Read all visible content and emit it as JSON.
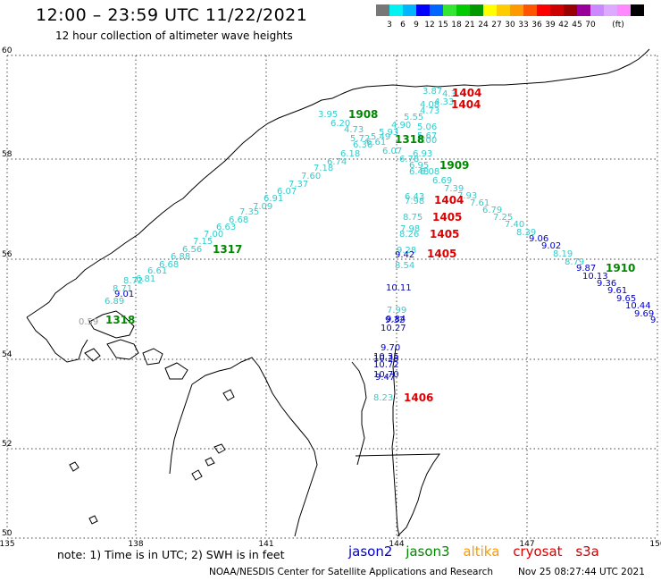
{
  "header": {
    "title": "12:00 – 23:59 UTC 11/22/2021",
    "subtitle": "12 hour collection of altimeter wave heights"
  },
  "scale": {
    "unit": "(ft)",
    "colors": [
      "#777777",
      "#00f2f2",
      "#00b4ff",
      "#0000ff",
      "#0066ff",
      "#33e633",
      "#00cc00",
      "#009900",
      "#ffff00",
      "#ffcc00",
      "#ff9900",
      "#ff5500",
      "#ff0000",
      "#cc0000",
      "#990000",
      "#990099",
      "#cc88ff",
      "#ddaaff",
      "#ff88ff",
      "#000000"
    ],
    "labels": [
      "3",
      "6",
      "9",
      "12",
      "15",
      "18",
      "21",
      "24",
      "27",
      "30",
      "33",
      "36",
      "39",
      "42",
      "45",
      "70"
    ]
  },
  "map": {
    "lat_ticks": [
      "60",
      "58",
      "56",
      "54",
      "52",
      "50"
    ],
    "lon_ticks": [
      "135",
      "138",
      "141",
      "144",
      "147",
      "150"
    ],
    "track_labels": [
      {
        "text": "1404",
        "color": "#dd0000"
      },
      {
        "text": "1404",
        "color": "#dd0000"
      },
      {
        "text": "1908",
        "color": "#008800"
      },
      {
        "text": "1318",
        "color": "#008800"
      },
      {
        "text": "1909",
        "color": "#008800"
      },
      {
        "text": "1404",
        "color": "#dd0000"
      },
      {
        "text": "1405",
        "color": "#dd0000"
      },
      {
        "text": "1405",
        "color": "#dd0000"
      },
      {
        "text": "1405",
        "color": "#dd0000"
      },
      {
        "text": "1317",
        "color": "#008800"
      },
      {
        "text": "1910",
        "color": "#008800"
      },
      {
        "text": "1318",
        "color": "#008800"
      },
      {
        "text": "1406",
        "color": "#dd0000"
      }
    ],
    "observations": [
      {
        "text": "3.87",
        "color": "#33cccc"
      },
      {
        "text": "4.3",
        "color": "#33cccc"
      },
      {
        "text": "4.08",
        "color": "#33cccc"
      },
      {
        "text": "4.33",
        "color": "#33cccc"
      },
      {
        "text": "4.73",
        "color": "#33cccc"
      },
      {
        "text": "3.95",
        "color": "#33cccc"
      },
      {
        "text": "6.20",
        "color": "#33cccc"
      },
      {
        "text": "5.55",
        "color": "#33cccc"
      },
      {
        "text": "4.73",
        "color": "#33cccc"
      },
      {
        "text": "4.90",
        "color": "#33cccc"
      },
      {
        "text": "5.06",
        "color": "#33cccc"
      },
      {
        "text": "5.49",
        "color": "#33cccc"
      },
      {
        "text": "5.93",
        "color": "#33cccc"
      },
      {
        "text": "5.67",
        "color": "#33cccc"
      },
      {
        "text": "5.72",
        "color": "#33cccc"
      },
      {
        "text": "6.36",
        "color": "#33cccc"
      },
      {
        "text": "6.61",
        "color": "#33cccc"
      },
      {
        "text": "6.00",
        "color": "#33cccc"
      },
      {
        "text": "6.18",
        "color": "#33cccc"
      },
      {
        "text": "6.07",
        "color": "#33cccc"
      },
      {
        "text": "6.93",
        "color": "#33cccc"
      },
      {
        "text": "6.74",
        "color": "#33cccc"
      },
      {
        "text": "6.78",
        "color": "#33cccc"
      },
      {
        "text": "7.18",
        "color": "#33cccc"
      },
      {
        "text": "6.95",
        "color": "#33cccc"
      },
      {
        "text": "7.60",
        "color": "#33cccc"
      },
      {
        "text": "6.48",
        "color": "#33cccc"
      },
      {
        "text": "6.08",
        "color": "#33cccc"
      },
      {
        "text": "7.37",
        "color": "#33cccc"
      },
      {
        "text": "6.69",
        "color": "#33cccc"
      },
      {
        "text": "6.07",
        "color": "#33cccc"
      },
      {
        "text": "7.39",
        "color": "#33cccc"
      },
      {
        "text": "6.91",
        "color": "#33cccc"
      },
      {
        "text": "7.93",
        "color": "#33cccc"
      },
      {
        "text": "7.09",
        "color": "#33cccc"
      },
      {
        "text": "6.43",
        "color": "#33cccc"
      },
      {
        "text": "7.61",
        "color": "#33cccc"
      },
      {
        "text": "7.98",
        "color": "#33cccc"
      },
      {
        "text": "7.35",
        "color": "#33cccc"
      },
      {
        "text": "6.79",
        "color": "#33cccc"
      },
      {
        "text": "6.68",
        "color": "#33cccc"
      },
      {
        "text": "8.75",
        "color": "#33cccc"
      },
      {
        "text": "7.25",
        "color": "#33cccc"
      },
      {
        "text": "6.63",
        "color": "#33cccc"
      },
      {
        "text": "7.40",
        "color": "#33cccc"
      },
      {
        "text": "7.98",
        "color": "#33cccc"
      },
      {
        "text": "7.00",
        "color": "#33cccc"
      },
      {
        "text": "8.39",
        "color": "#33cccc"
      },
      {
        "text": "8.26",
        "color": "#33cccc"
      },
      {
        "text": "7.15",
        "color": "#33cccc"
      },
      {
        "text": "9.06",
        "color": "#0000cc"
      },
      {
        "text": "6.56",
        "color": "#33cccc"
      },
      {
        "text": "9.02",
        "color": "#0000cc"
      },
      {
        "text": "9.28",
        "color": "#33cccc"
      },
      {
        "text": "6.88",
        "color": "#33cccc"
      },
      {
        "text": "8.19",
        "color": "#33cccc"
      },
      {
        "text": "9.42",
        "color": "#0000cc"
      },
      {
        "text": "6.68",
        "color": "#33cccc"
      },
      {
        "text": "8.79",
        "color": "#33cccc"
      },
      {
        "text": "6.61",
        "color": "#33cccc"
      },
      {
        "text": "8.54",
        "color": "#33cccc"
      },
      {
        "text": "9.87",
        "color": "#0000cc"
      },
      {
        "text": "6.81",
        "color": "#33cccc"
      },
      {
        "text": "10.13",
        "color": "#0000cc"
      },
      {
        "text": "8.72",
        "color": "#33cccc"
      },
      {
        "text": "9.36",
        "color": "#0000cc"
      },
      {
        "text": "8.71",
        "color": "#33cccc"
      },
      {
        "text": "10.11",
        "color": "#0000cc"
      },
      {
        "text": "9.61",
        "color": "#0000cc"
      },
      {
        "text": "9.01",
        "color": "#0000cc"
      },
      {
        "text": "9.65",
        "color": "#0000cc"
      },
      {
        "text": "6.89",
        "color": "#33cccc"
      },
      {
        "text": "10.44",
        "color": "#0000cc"
      },
      {
        "text": "7.99",
        "color": "#33cccc"
      },
      {
        "text": "9.69",
        "color": "#0000cc"
      },
      {
        "text": "9.32",
        "color": "#0000cc"
      },
      {
        "text": "9.84",
        "color": "#0000cc"
      },
      {
        "text": "0.59",
        "color": "#999999"
      },
      {
        "text": "9.",
        "color": "#0000cc"
      },
      {
        "text": "10.27",
        "color": "#0000cc"
      },
      {
        "text": "9.70",
        "color": "#0000cc"
      },
      {
        "text": "10.35",
        "color": "#0000cc"
      },
      {
        "text": "10.38",
        "color": "#0000cc"
      },
      {
        "text": "10.72",
        "color": "#0000cc"
      },
      {
        "text": "10.70",
        "color": "#0000cc"
      },
      {
        "text": "9.47",
        "color": "#0000cc"
      },
      {
        "text": "8.23",
        "color": "#33cccc"
      }
    ]
  },
  "footer": {
    "note": "note: 1) Time is in UTC; 2) SWH is in feet",
    "legend": [
      {
        "name": "jason2",
        "color": "#0000cc"
      },
      {
        "name": "jason3",
        "color": "#008800"
      },
      {
        "name": "altika",
        "color": "#ff9900"
      },
      {
        "name": "cryosat",
        "color": "#dd0000"
      },
      {
        "name": "s3a",
        "color": "#cc0000"
      }
    ],
    "credit": "NOAA/NESDIS Center for Satellite Applications and Research",
    "timestamp": "Nov 25 08:27:44 UTC 2021"
  }
}
